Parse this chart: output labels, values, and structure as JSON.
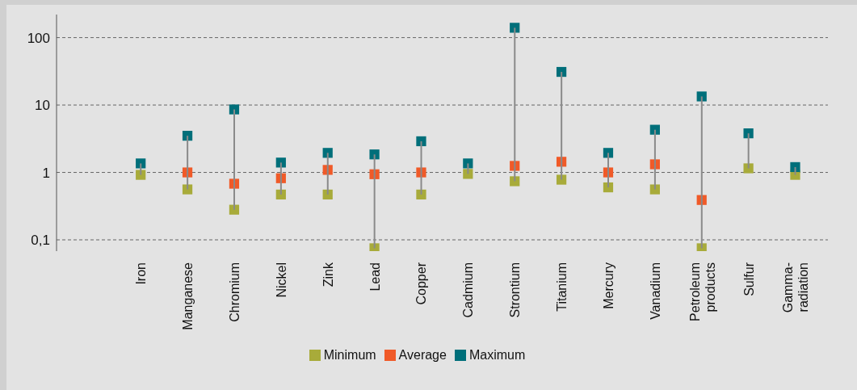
{
  "chart_data": {
    "type": "scatter",
    "categories": [
      "Iron",
      "Manganese",
      "Chromium",
      "Nickel",
      "Zink",
      "Lead",
      "Copper",
      "Cadmium",
      "Strontium",
      "Titanium",
      "Mercury",
      "Vanadium",
      "Petroleum products",
      "Sulfur",
      "Gamma-radiation"
    ],
    "series": [
      {
        "name": "Minimum",
        "color": "#a8ab3a",
        "values": [
          0.92,
          0.56,
          0.28,
          0.47,
          0.47,
          0.075,
          0.47,
          0.95,
          0.74,
          0.78,
          0.6,
          0.56,
          0.075,
          1.15,
          0.92
        ]
      },
      {
        "name": "Average",
        "color": "#f05a28",
        "values": [
          null,
          1.0,
          0.68,
          0.82,
          1.09,
          0.94,
          1.0,
          null,
          1.25,
          1.44,
          1.0,
          1.32,
          0.39,
          null,
          null
        ]
      },
      {
        "name": "Maximum",
        "color": "#006f7a",
        "values": [
          1.36,
          3.5,
          8.6,
          1.4,
          1.95,
          1.85,
          2.9,
          1.36,
          140,
          31,
          1.95,
          4.3,
          13.4,
          3.8,
          1.2
        ]
      },
      {
        "type": "bar",
        "color": "#8a8a8a",
        "base": [
          0.92,
          0.56,
          0.28,
          0.47,
          0.47,
          0.075,
          0.47,
          0.95,
          0.74,
          0.78,
          0.6,
          0.56,
          0.075,
          1.15,
          0.92
        ],
        "values": [
          0.44,
          2.94,
          8.32,
          0.93,
          1.48,
          1.775,
          2.43,
          0.41,
          139.26,
          30.22,
          1.35,
          3.74,
          13.325,
          2.65,
          0.28
        ]
      }
    ],
    "log": "y",
    "ylim": [
      0.068,
      220
    ],
    "yticks": [
      {
        "value": 0.1,
        "label": "0,1"
      },
      1,
      10,
      100
    ],
    "grid": "y",
    "legend": "bottom",
    "marker": "square"
  }
}
